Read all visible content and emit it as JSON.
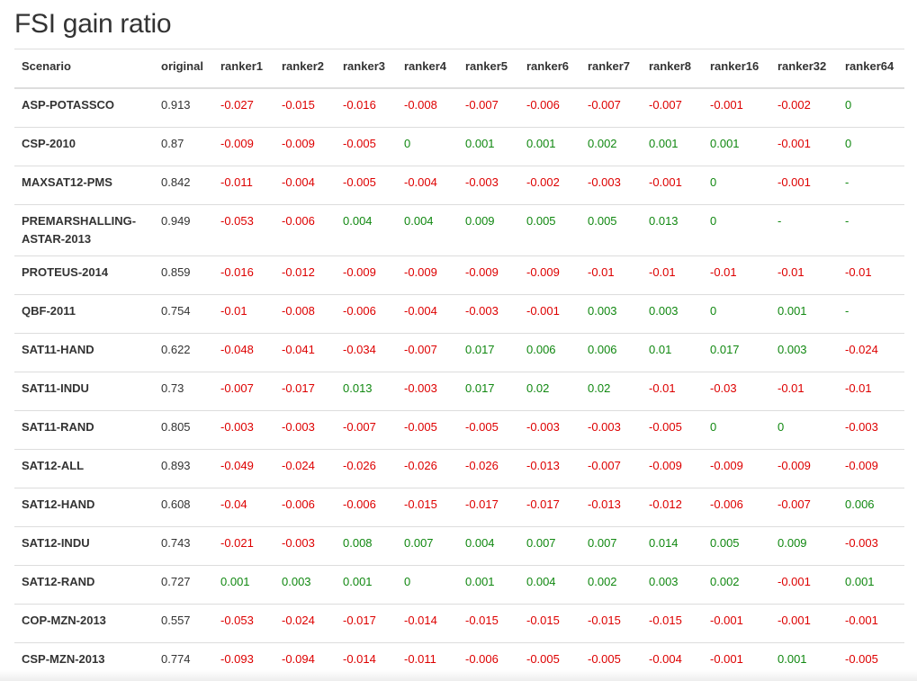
{
  "title": "FSI gain ratio",
  "columns": [
    "Scenario",
    "original",
    "ranker1",
    "ranker2",
    "ranker3",
    "ranker4",
    "ranker5",
    "ranker6",
    "ranker7",
    "ranker8",
    "ranker16",
    "ranker32",
    "ranker64"
  ],
  "rows": [
    {
      "scenario": "ASP-POTASSCO",
      "values": [
        "0.913",
        "-0.027",
        "-0.015",
        "-0.016",
        "-0.008",
        "-0.007",
        "-0.006",
        "-0.007",
        "-0.007",
        "-0.001",
        "-0.002",
        "0"
      ]
    },
    {
      "scenario": "CSP-2010",
      "values": [
        "0.87",
        "-0.009",
        "-0.009",
        "-0.005",
        "0",
        "0.001",
        "0.001",
        "0.002",
        "0.001",
        "0.001",
        "-0.001",
        "0"
      ]
    },
    {
      "scenario": "MAXSAT12-PMS",
      "values": [
        "0.842",
        "-0.011",
        "-0.004",
        "-0.005",
        "-0.004",
        "-0.003",
        "-0.002",
        "-0.003",
        "-0.001",
        "0",
        "-0.001",
        "-"
      ]
    },
    {
      "scenario": "PREMARSHALLING-ASTAR-2013",
      "values": [
        "0.949",
        "-0.053",
        "-0.006",
        "0.004",
        "0.004",
        "0.009",
        "0.005",
        "0.005",
        "0.013",
        "0",
        "-",
        "-"
      ]
    },
    {
      "scenario": "PROTEUS-2014",
      "values": [
        "0.859",
        "-0.016",
        "-0.012",
        "-0.009",
        "-0.009",
        "-0.009",
        "-0.009",
        "-0.01",
        "-0.01",
        "-0.01",
        "-0.01",
        "-0.01"
      ]
    },
    {
      "scenario": "QBF-2011",
      "values": [
        "0.754",
        "-0.01",
        "-0.008",
        "-0.006",
        "-0.004",
        "-0.003",
        "-0.001",
        "0.003",
        "0.003",
        "0",
        "0.001",
        "-"
      ]
    },
    {
      "scenario": "SAT11-HAND",
      "values": [
        "0.622",
        "-0.048",
        "-0.041",
        "-0.034",
        "-0.007",
        "0.017",
        "0.006",
        "0.006",
        "0.01",
        "0.017",
        "0.003",
        "-0.024"
      ]
    },
    {
      "scenario": "SAT11-INDU",
      "values": [
        "0.73",
        "-0.007",
        "-0.017",
        "0.013",
        "-0.003",
        "0.017",
        "0.02",
        "0.02",
        "-0.01",
        "-0.03",
        "-0.01",
        "-0.01"
      ]
    },
    {
      "scenario": "SAT11-RAND",
      "values": [
        "0.805",
        "-0.003",
        "-0.003",
        "-0.007",
        "-0.005",
        "-0.005",
        "-0.003",
        "-0.003",
        "-0.005",
        "0",
        "0",
        "-0.003"
      ]
    },
    {
      "scenario": "SAT12-ALL",
      "values": [
        "0.893",
        "-0.049",
        "-0.024",
        "-0.026",
        "-0.026",
        "-0.026",
        "-0.013",
        "-0.007",
        "-0.009",
        "-0.009",
        "-0.009",
        "-0.009"
      ]
    },
    {
      "scenario": "SAT12-HAND",
      "values": [
        "0.608",
        "-0.04",
        "-0.006",
        "-0.006",
        "-0.015",
        "-0.017",
        "-0.017",
        "-0.013",
        "-0.012",
        "-0.006",
        "-0.007",
        "0.006"
      ]
    },
    {
      "scenario": "SAT12-INDU",
      "values": [
        "0.743",
        "-0.021",
        "-0.003",
        "0.008",
        "0.007",
        "0.004",
        "0.007",
        "0.007",
        "0.014",
        "0.005",
        "0.009",
        "-0.003"
      ]
    },
    {
      "scenario": "SAT12-RAND",
      "values": [
        "0.727",
        "0.001",
        "0.003",
        "0.001",
        "0",
        "0.001",
        "0.004",
        "0.002",
        "0.003",
        "0.002",
        "-0.001",
        "0.001"
      ]
    },
    {
      "scenario": "COP-MZN-2013",
      "values": [
        "0.557",
        "-0.053",
        "-0.024",
        "-0.017",
        "-0.014",
        "-0.015",
        "-0.015",
        "-0.015",
        "-0.015",
        "-0.001",
        "-0.001",
        "-0.001"
      ]
    },
    {
      "scenario": "CSP-MZN-2013",
      "values": [
        "0.774",
        "-0.093",
        "-0.094",
        "-0.014",
        "-0.011",
        "-0.006",
        "-0.005",
        "-0.005",
        "-0.004",
        "-0.001",
        "0.001",
        "-0.005"
      ]
    }
  ],
  "colors": {
    "negative": "#dd0000",
    "positive": "#118811",
    "text": "#333333",
    "border": "#dddddd"
  }
}
